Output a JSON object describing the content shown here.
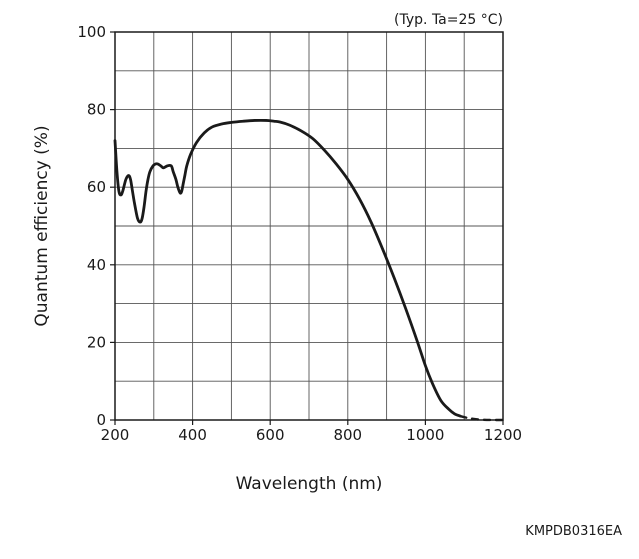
{
  "chart_data": {
    "type": "line",
    "title": "",
    "note": "(Typ. Ta=25 °C)",
    "xlabel": "Wavelength (nm)",
    "ylabel": "Quantum efficiency (%)",
    "xlim": [
      200,
      1200
    ],
    "ylim": [
      0,
      100
    ],
    "x_ticks": [
      200,
      400,
      600,
      800,
      1000,
      1200
    ],
    "y_ticks": [
      0,
      20,
      40,
      60,
      80,
      100
    ],
    "x_minor_step": 100,
    "y_minor_step": 10,
    "grid": true,
    "series": [
      {
        "style": "solid",
        "x": [
          200,
          205,
          210,
          215,
          220,
          228,
          235,
          240,
          245,
          250,
          258,
          265,
          270,
          275,
          280,
          285,
          290,
          298,
          305,
          310,
          318,
          325,
          335,
          345,
          350,
          357,
          362,
          368,
          372,
          376,
          380,
          385,
          395,
          410,
          430,
          450,
          475,
          500,
          530,
          560,
          590,
          610,
          625,
          650,
          680,
          710,
          740,
          770,
          800,
          830,
          860,
          890,
          920,
          950,
          980,
          1000,
          1020,
          1040,
          1060,
          1075,
          1090
        ],
        "y": [
          72,
          64,
          59,
          58,
          59,
          62,
          63,
          62,
          59,
          56,
          52,
          51,
          52,
          55,
          59,
          62,
          64,
          65.5,
          66,
          66,
          65.5,
          65,
          65.5,
          65.5,
          64,
          62,
          60,
          58.5,
          59,
          61,
          63,
          65.5,
          68.5,
          71.5,
          74,
          75.5,
          76.3,
          76.7,
          77,
          77.2,
          77.2,
          77,
          76.8,
          76,
          74.5,
          72.5,
          69.5,
          66,
          62,
          57,
          51,
          44,
          36.5,
          28.5,
          20,
          14,
          9,
          5,
          2.8,
          1.6,
          1.0
        ]
      },
      {
        "style": "dashed",
        "x": [
          1090,
          1110,
          1130,
          1150,
          1170,
          1190,
          1200
        ],
        "y": [
          1.0,
          0.5,
          0.2,
          0.05,
          0,
          0,
          0
        ]
      }
    ]
  },
  "figure_code": "KMPDB0316EA"
}
